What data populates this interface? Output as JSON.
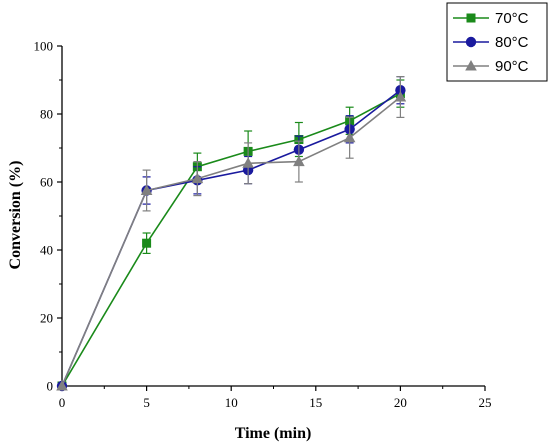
{
  "chart_data": {
    "type": "line",
    "xlabel": "Time (min)",
    "ylabel": "Conversion (%)",
    "xlim": [
      0,
      25
    ],
    "ylim": [
      0,
      100
    ],
    "x_ticks": [
      "0",
      "5",
      "10",
      "15",
      "20",
      "25"
    ],
    "y_ticks": [
      "0",
      "20",
      "40",
      "60",
      "80",
      "100"
    ],
    "grid": false,
    "legend_position": "top-right",
    "series": [
      {
        "name": "70°C",
        "color": "#1a8a1a",
        "marker": "square",
        "x": [
          0,
          5,
          8,
          11,
          14,
          17,
          20
        ],
        "y": [
          0,
          42,
          64.5,
          69,
          72.5,
          78,
          86
        ],
        "err": [
          0,
          3,
          4,
          6,
          5,
          4,
          4
        ]
      },
      {
        "name": "80°C",
        "color": "#1a1a9e",
        "marker": "circle",
        "x": [
          0,
          5,
          8,
          11,
          14,
          17,
          20
        ],
        "y": [
          0,
          57.5,
          60.5,
          63.5,
          69.5,
          75.5,
          87
        ],
        "err": [
          0,
          4,
          4,
          4,
          4,
          4,
          4
        ]
      },
      {
        "name": "90°C",
        "color": "#808080",
        "marker": "triangle",
        "x": [
          0,
          5,
          8,
          11,
          14,
          17,
          20
        ],
        "y": [
          0,
          57.5,
          61,
          65.5,
          66,
          73,
          85
        ],
        "err": [
          0,
          6,
          5,
          6,
          6,
          6,
          6
        ]
      }
    ]
  }
}
